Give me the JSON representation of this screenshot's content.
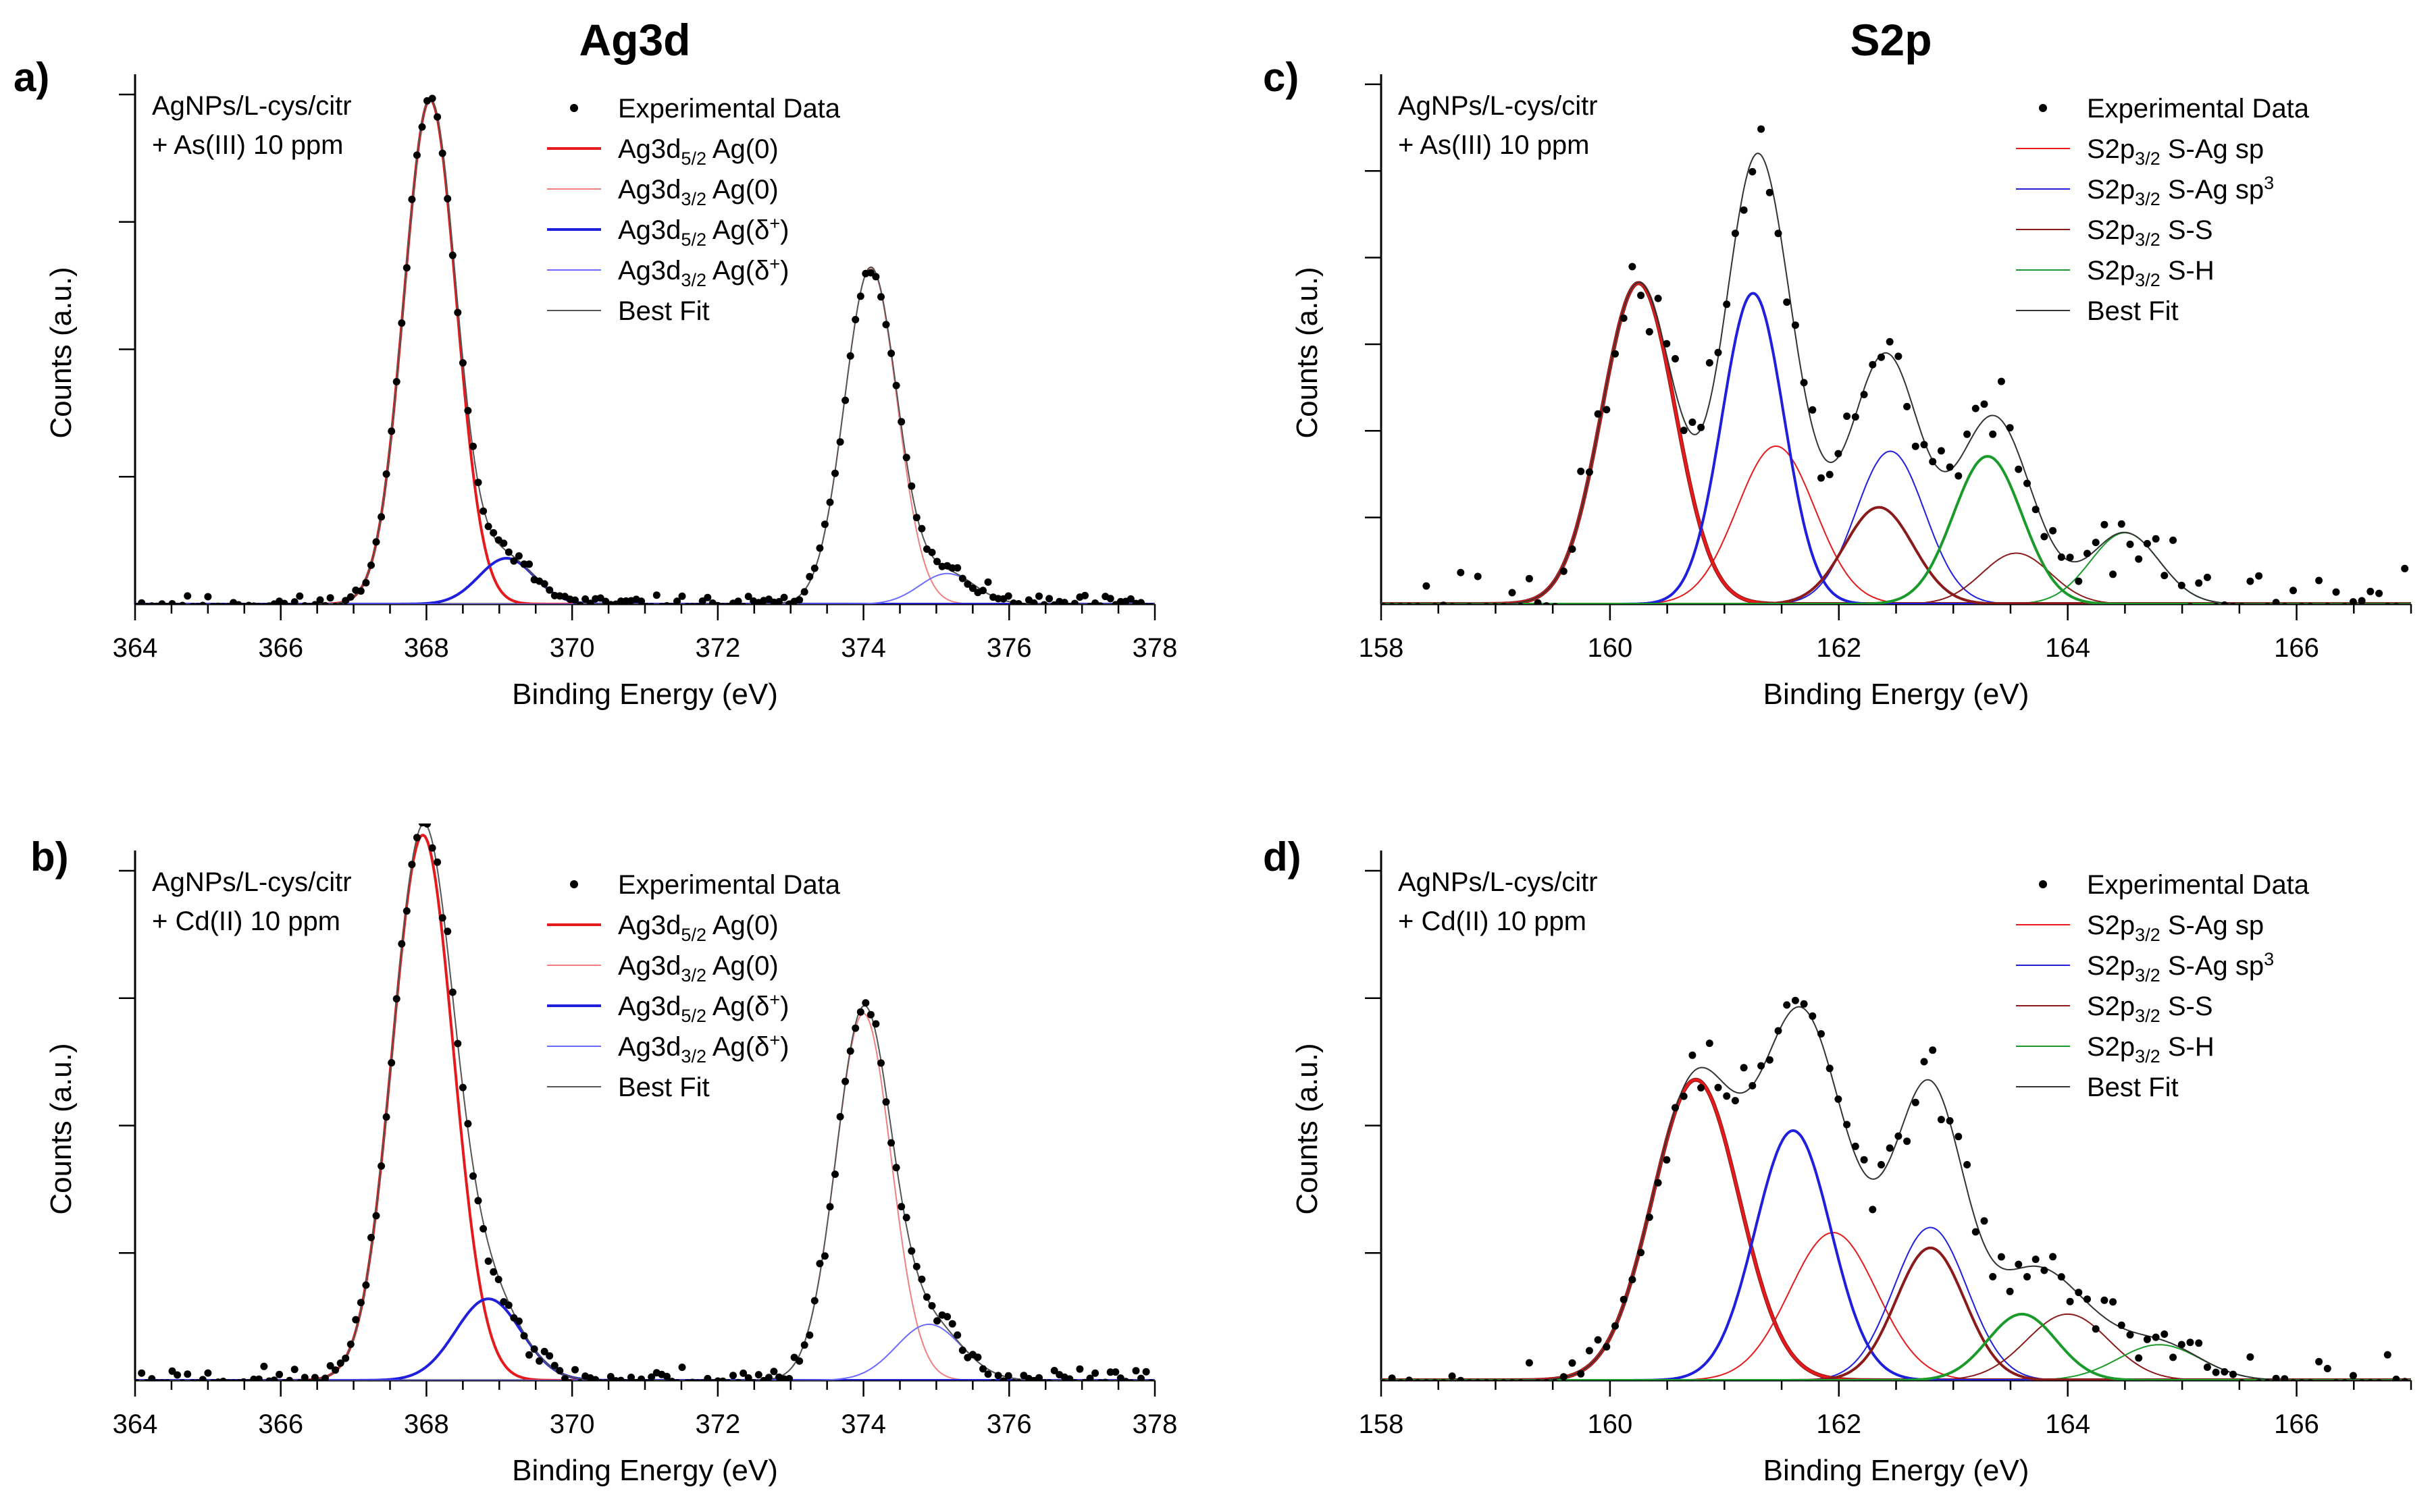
{
  "figure": {
    "column_titles": [
      "Ag3d",
      "S2p"
    ]
  },
  "chart_data": [
    {
      "panel": "a)",
      "type": "scatter",
      "title": "Ag3d",
      "sample_lines": [
        "AgNPs/L-cys/citr",
        "+ As(III) 10 ppm"
      ],
      "xlabel": "Binding Energy (eV)",
      "ylabel": "Counts (a.u.)",
      "xlim": [
        364,
        378
      ],
      "ylim": [
        0,
        1.0
      ],
      "xticks": [
        364,
        366,
        368,
        370,
        372,
        374,
        376,
        378
      ],
      "yticks": [
        0.25,
        0.5,
        0.75,
        1.0
      ],
      "legend_loc": "top-right",
      "experimental_seed": 11,
      "experimental_noise": 0.008,
      "experimental_step": 0.07,
      "series": [
        {
          "name": "Experimental Data",
          "role": "data",
          "color": "#000000"
        },
        {
          "name": "Ag3d5/2 Ag(0)",
          "label_main": "Ag3d",
          "label_sub": "5/2",
          "label_sup": "",
          "label_tail": " Ag(0)",
          "color": "#e41a1c",
          "width": 4,
          "center": 368.05,
          "height": 0.99,
          "sigma": 0.36
        },
        {
          "name": "Ag3d3/2 Ag(0)",
          "label_main": "Ag3d",
          "label_sub": "3/2",
          "label_sup": "",
          "label_tail": " Ag(0)",
          "color": "#f08080",
          "width": 2,
          "center": 374.1,
          "height": 0.66,
          "sigma": 0.36
        },
        {
          "name": "Ag3d5/2 Ag(δ+)",
          "label_main": "Ag3d",
          "label_sub": "5/2",
          "label_sup": "+",
          "label_tail_pre": " Ag(δ",
          "label_tail": ")",
          "color": "#1f1fdc",
          "width": 4,
          "center": 369.1,
          "height": 0.09,
          "sigma": 0.38
        },
        {
          "name": "Ag3d3/2 Ag(δ+)",
          "label_main": "Ag3d",
          "label_sub": "3/2",
          "label_sup": "+",
          "label_tail_pre": " Ag(δ",
          "label_tail": ")",
          "color": "#6b6bff",
          "width": 2,
          "center": 375.15,
          "height": 0.06,
          "sigma": 0.38
        },
        {
          "name": "Best Fit",
          "role": "fit",
          "color": "#555555",
          "width": 2
        }
      ]
    },
    {
      "panel": "b)",
      "type": "scatter",
      "title": "",
      "sample_lines": [
        "AgNPs/L-cys/citr",
        "+ Cd(II) 10 ppm"
      ],
      "xlabel": "Binding Energy (eV)",
      "ylabel": "Counts (a.u.)",
      "xlim": [
        364,
        378
      ],
      "ylim": [
        0,
        1.0
      ],
      "xticks": [
        364,
        366,
        368,
        370,
        372,
        374,
        376,
        378
      ],
      "yticks": [
        0.25,
        0.5,
        0.75,
        1.0
      ],
      "legend_loc": "top-right",
      "experimental_seed": 23,
      "experimental_noise": 0.013,
      "experimental_step": 0.07,
      "series": [
        {
          "name": "Experimental Data",
          "role": "data",
          "color": "#000000"
        },
        {
          "name": "Ag3d5/2 Ag(0)",
          "label_main": "Ag3d",
          "label_sub": "5/2",
          "label_sup": "",
          "label_tail": " Ag(0)",
          "color": "#e41a1c",
          "width": 4,
          "center": 367.95,
          "height": 1.07,
          "sigma": 0.42
        },
        {
          "name": "Ag3d3/2 Ag(0)",
          "label_main": "Ag3d",
          "label_sub": "3/2",
          "label_sup": "",
          "label_tail": " Ag(0)",
          "color": "#f08080",
          "width": 2,
          "center": 374.0,
          "height": 0.72,
          "sigma": 0.38
        },
        {
          "name": "Ag3d5/2 Ag(δ+)",
          "label_main": "Ag3d",
          "label_sub": "5/2",
          "label_sup": "+",
          "label_tail_pre": " Ag(δ",
          "label_tail": ")",
          "color": "#1f1fdc",
          "width": 4,
          "center": 368.85,
          "height": 0.16,
          "sigma": 0.45
        },
        {
          "name": "Ag3d3/2 Ag(δ+)",
          "label_main": "Ag3d",
          "label_sub": "3/2",
          "label_sup": "+",
          "label_tail_pre": " Ag(δ",
          "label_tail": ")",
          "color": "#6b6bff",
          "width": 2,
          "center": 374.9,
          "height": 0.11,
          "sigma": 0.45
        },
        {
          "name": "Best Fit",
          "role": "fit",
          "color": "#555555",
          "width": 2
        }
      ]
    },
    {
      "panel": "c)",
      "type": "scatter",
      "title": "S2p",
      "sample_lines": [
        "AgNPs/L-cys/citr",
        "+ As(III) 10 ppm"
      ],
      "xlabel": "Binding Energy (eV)",
      "ylabel": "Counts (a.u.)",
      "xlim": [
        158,
        167
      ],
      "ylim": [
        0,
        1.0
      ],
      "xticks": [
        158,
        160,
        162,
        164,
        166
      ],
      "yticks": [
        0.17,
        0.34,
        0.51,
        0.68,
        0.85,
        1.02
      ],
      "legend_loc": "top-right",
      "experimental_seed": 37,
      "experimental_noise": 0.035,
      "experimental_step": 0.075,
      "series": [
        {
          "name": "Experimental Data",
          "role": "data",
          "color": "#000000"
        },
        {
          "name": "S2p3/2 S-Ag sp",
          "label_main": "S2p",
          "label_sub": "3/2",
          "label_sup": "",
          "label_tail": " S-Ag sp",
          "color": "#e41a1c",
          "width": 2,
          "center": 161.45,
          "height": 0.31,
          "sigma": 0.34
        },
        {
          "name": "S2p3/2 S-Ag sp3",
          "label_main": "S2p",
          "label_sub": "3/2",
          "label_sup": "3",
          "label_tail_pre": " S-Ag sp",
          "label_tail": "",
          "color": "#1f1fdc",
          "width": 2,
          "center": 162.45,
          "height": 0.3,
          "sigma": 0.3
        },
        {
          "name": "S2p3/2 S-S",
          "label_main": "S2p",
          "label_sub": "3/2",
          "label_sup": "",
          "label_tail": " S-S",
          "color": "#8b1a1a",
          "width": 2,
          "center": 163.55,
          "height": 0.1,
          "sigma": 0.3
        },
        {
          "name": "S2p3/2 S-H",
          "label_main": "S2p",
          "label_sub": "3/2",
          "label_sup": "",
          "label_tail": " S-H",
          "color": "#1a9a2a",
          "width": 2,
          "center": 164.5,
          "height": 0.14,
          "sigma": 0.3
        },
        {
          "name": "Best Fit",
          "role": "fit",
          "color": "#333333",
          "width": 2
        }
      ],
      "extra_components": [
        {
          "color": "#e41a1c",
          "width": 4,
          "center": 160.25,
          "height": 0.63,
          "sigma": 0.32,
          "under": "#8b1a1a"
        },
        {
          "color": "#1f1fdc",
          "width": 4,
          "center": 161.25,
          "height": 0.61,
          "sigma": 0.27
        },
        {
          "color": "#8b1a1a",
          "width": 4,
          "center": 162.35,
          "height": 0.19,
          "sigma": 0.3
        },
        {
          "color": "#1a9a2a",
          "width": 4,
          "center": 163.3,
          "height": 0.29,
          "sigma": 0.3
        }
      ]
    },
    {
      "panel": "d)",
      "type": "scatter",
      "title": "",
      "sample_lines": [
        "AgNPs/L-cys/citr",
        "+ Cd(II) 10 ppm"
      ],
      "xlabel": "Binding Energy (eV)",
      "ylabel": "Counts (a.u.)",
      "xlim": [
        158,
        167
      ],
      "ylim": [
        0,
        1.0
      ],
      "xticks": [
        158,
        160,
        162,
        164,
        166
      ],
      "yticks": [
        0.25,
        0.5,
        0.75,
        1.0
      ],
      "legend_loc": "top-right",
      "experimental_seed": 53,
      "experimental_noise": 0.025,
      "experimental_step": 0.075,
      "series": [
        {
          "name": "Experimental Data",
          "role": "data",
          "color": "#000000"
        },
        {
          "name": "S2p3/2 S-Ag sp",
          "label_main": "S2p",
          "label_sub": "3/2",
          "label_sup": "",
          "label_tail": " S-Ag sp",
          "color": "#e41a1c",
          "width": 2,
          "center": 161.95,
          "height": 0.29,
          "sigma": 0.38
        },
        {
          "name": "S2p3/2 S-Ag sp3",
          "label_main": "S2p",
          "label_sub": "3/2",
          "label_sup": "3",
          "label_tail_pre": " S-Ag sp",
          "label_tail": "",
          "color": "#1f1fdc",
          "width": 2,
          "center": 162.8,
          "height": 0.3,
          "sigma": 0.32
        },
        {
          "name": "S2p3/2 S-S",
          "label_main": "S2p",
          "label_sub": "3/2",
          "label_sup": "",
          "label_tail": " S-S",
          "color": "#8b1a1a",
          "width": 2,
          "center": 164.0,
          "height": 0.13,
          "sigma": 0.36
        },
        {
          "name": "S2p3/2 S-H",
          "label_main": "S2p",
          "label_sub": "3/2",
          "label_sup": "",
          "label_tail": " S-H",
          "color": "#1a9a2a",
          "width": 2,
          "center": 164.8,
          "height": 0.07,
          "sigma": 0.36
        },
        {
          "name": "Best Fit",
          "role": "fit",
          "color": "#333333",
          "width": 2
        }
      ],
      "extra_components": [
        {
          "color": "#e41a1c",
          "width": 4,
          "center": 160.75,
          "height": 0.59,
          "sigma": 0.38,
          "under": "#8b1a1a"
        },
        {
          "color": "#1f1fdc",
          "width": 4,
          "center": 161.6,
          "height": 0.49,
          "sigma": 0.33
        },
        {
          "color": "#8b1a1a",
          "width": 4,
          "center": 162.8,
          "height": 0.26,
          "sigma": 0.3
        },
        {
          "color": "#1a9a2a",
          "width": 4,
          "center": 163.6,
          "height": 0.13,
          "sigma": 0.3
        }
      ]
    }
  ]
}
